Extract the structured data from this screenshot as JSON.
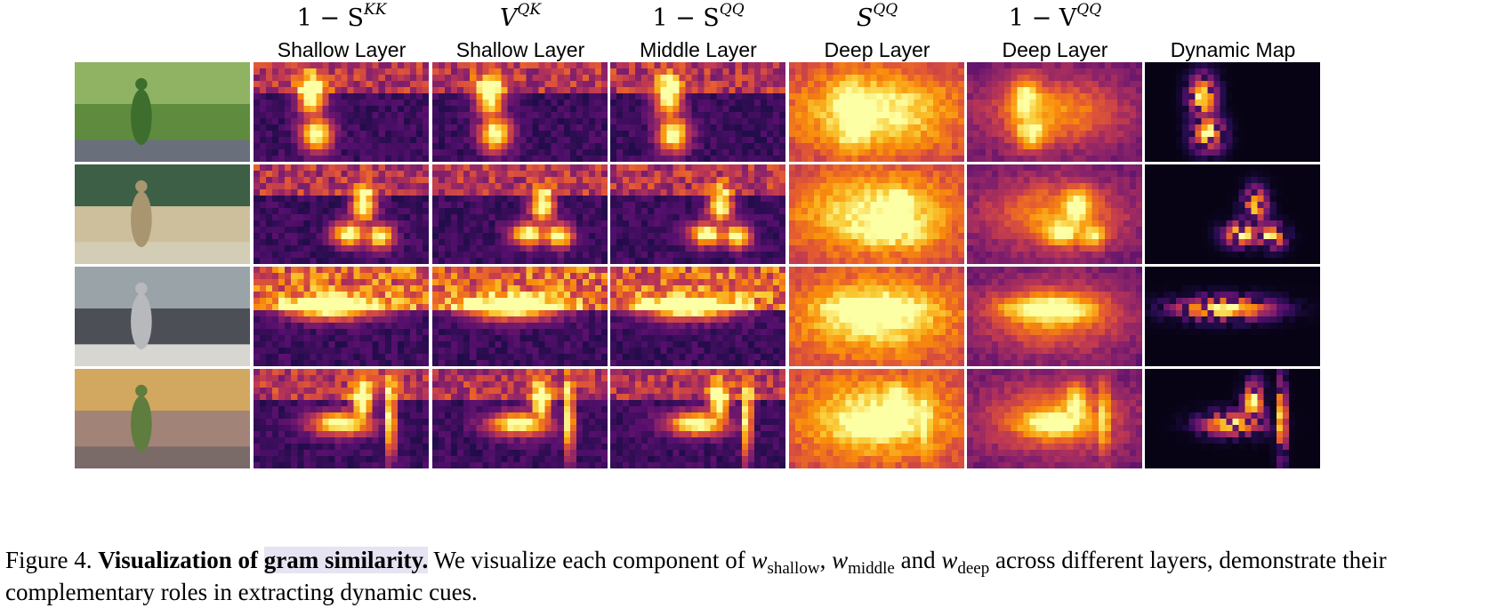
{
  "columns": [
    {
      "math": "1 − S",
      "math_sup": "KK",
      "layer": "Shallow Layer"
    },
    {
      "math": "V",
      "math_sup": "QK",
      "layer": "Shallow Layer"
    },
    {
      "math": "1 − S",
      "math_sup": "QQ",
      "layer": "Middle Layer"
    },
    {
      "math": "S",
      "math_sup": "QQ",
      "layer": "Deep Layer"
    },
    {
      "math": "1 − V",
      "math_sup": "QQ",
      "layer": "Deep Layer"
    },
    {
      "math": "",
      "math_sup": "",
      "layer": "Dynamic Map"
    }
  ],
  "colormap": "inferno",
  "rows": [
    {
      "photo_icon": "walking-woman-photo-icon",
      "photo_colors": [
        "#5f8b3e",
        "#3d6e2e",
        "#8fb363",
        "#6a6f7c"
      ]
    },
    {
      "photo_icon": "bmx-rider-photo-icon",
      "photo_colors": [
        "#cdbf9c",
        "#a99670",
        "#3c5f46",
        "#d4cdb5"
      ]
    },
    {
      "photo_icon": "car-street-photo-icon",
      "photo_colors": [
        "#4c4f55",
        "#b8b9bd",
        "#9aa4a8",
        "#d7d6d0"
      ]
    },
    {
      "photo_icon": "swing-girl-photo-icon",
      "photo_colors": [
        "#a28378",
        "#5e7d3e",
        "#d2a760",
        "#7a6a68"
      ]
    }
  ],
  "caption": {
    "prefix": "Figure 4. ",
    "bold_a": "Visualization of ",
    "bold_b": "gram similarity.",
    "t1": " We visualize each component of ",
    "w1": "w",
    "s1": "shallow",
    "t2": ", ",
    "w2": "w",
    "s2": "middle",
    "t3": " and ",
    "w3": "w",
    "s3": "deep",
    "t4": " across different layers, demonstrate their complementary roles in extracting dynamic cues."
  }
}
